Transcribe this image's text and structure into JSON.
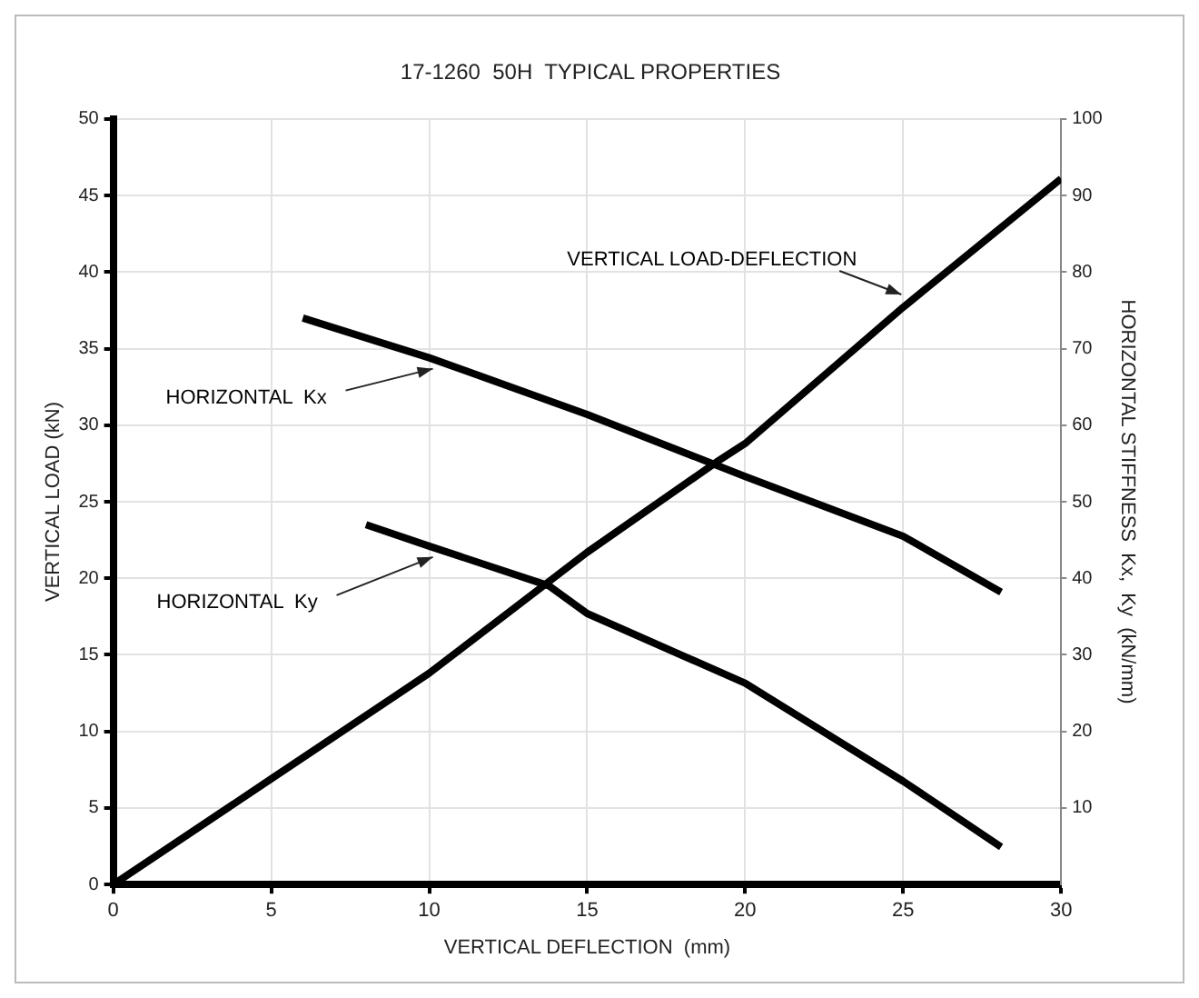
{
  "chart_data": {
    "type": "line",
    "title": "17-1260  50H  TYPICAL PROPERTIES",
    "xlabel": "VERTICAL DEFLECTION  (mm)",
    "ylabel": "VERTICAL LOAD (kN)",
    "y2label": "HORIZONTAL STIFFNESS  Kx,  Ky  (kN/mm)",
    "xlim": [
      0,
      30
    ],
    "xticks": [
      0,
      5,
      10,
      15,
      20,
      25,
      30
    ],
    "ylim": [
      0,
      50
    ],
    "yticks": [
      0,
      5,
      10,
      15,
      20,
      25,
      30,
      35,
      40,
      45,
      50
    ],
    "y2lim": [
      0,
      100
    ],
    "y2ticks": [
      10,
      20,
      30,
      40,
      50,
      60,
      70,
      80,
      90,
      100
    ],
    "grid": true,
    "legend": false,
    "marker": "none",
    "line_style": "solid",
    "series": [
      {
        "name": "VERTICAL LOAD-DEFLECTION",
        "color": "#000000",
        "x": [
          0,
          5,
          10,
          15,
          19.1,
          20,
          25,
          30
        ],
        "values": [
          0,
          6.9,
          13.8,
          21.7,
          27.6,
          28.8,
          37.7,
          46.1
        ]
      },
      {
        "name": "HORIZONTAL  Kx",
        "color": "#000000",
        "axis": "y2",
        "x": [
          6,
          10,
          15,
          20,
          25,
          28.1
        ],
        "values": [
          74,
          68.8,
          61.4,
          53.3,
          45.5,
          38.2
        ]
      },
      {
        "name": "HORIZONTAL  Ky",
        "color": "#000000",
        "axis": "y2",
        "x": [
          8,
          10,
          13.8,
          15,
          20,
          25,
          28.1
        ],
        "values": [
          47,
          44.2,
          39,
          35.4,
          26.3,
          13.5,
          4.9
        ]
      }
    ]
  }
}
